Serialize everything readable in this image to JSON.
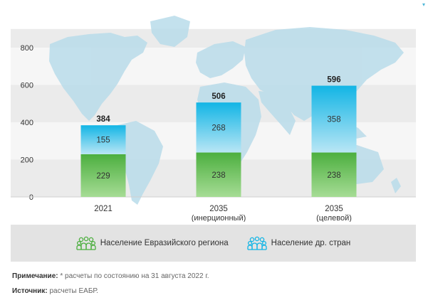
{
  "chart_data": {
    "type": "bar",
    "stacked": true,
    "categories": [
      {
        "line1": "2021",
        "line2": ""
      },
      {
        "line1": "2035",
        "line2": "(инерционный)"
      },
      {
        "line1": "2035",
        "line2": "(целевой)"
      }
    ],
    "series": [
      {
        "name": "Население Евразийского региона",
        "values": [
          229,
          238,
          238
        ],
        "color_top": "#4caf3f",
        "color_bottom": "#a6dc95"
      },
      {
        "name": "Население др. стран",
        "values": [
          155,
          268,
          358
        ],
        "color_top": "#12b5e5",
        "color_bottom": "#b9e6f5"
      }
    ],
    "totals": [
      384,
      506,
      596
    ],
    "y_ticks": [
      0,
      200,
      400,
      600,
      800
    ],
    "ylim": [
      0,
      900
    ],
    "grid": "alternating horizontal bands",
    "legend_position": "bottom",
    "background": "world map"
  },
  "notes": {
    "note_label": "Примечание:",
    "note_text": " * расчеты по состоянию на 31 августа 2022 г.",
    "source_label": "Источник:",
    "source_text": " расчеты ЕАБР."
  },
  "colors": {
    "band": "#ebebeb",
    "map": "#b9dcea",
    "green_icon": "#4caf3f",
    "blue_icon": "#12b5e5"
  }
}
